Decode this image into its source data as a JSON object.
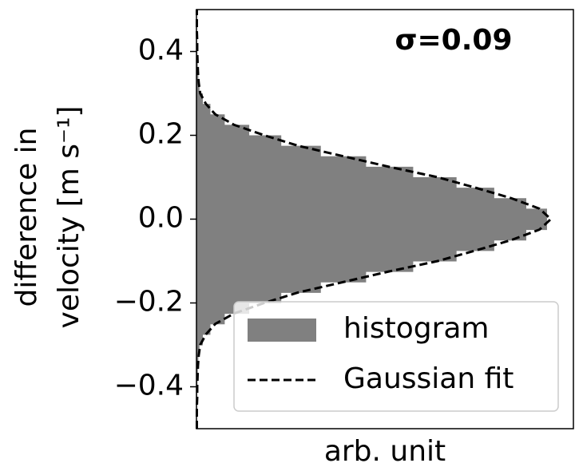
{
  "chart_data": {
    "type": "histogram",
    "orientation": "horizontal",
    "xlabel": "arb. unit",
    "ylabel": [
      "difference in",
      "velocity [m s⁻¹]"
    ],
    "annotation": "σ=0.09",
    "ylim": [
      -0.5,
      0.5
    ],
    "xlim": [
      0,
      1
    ],
    "yticks": [
      {
        "value": -0.4,
        "label": "−0.4"
      },
      {
        "value": -0.2,
        "label": "−0.2"
      },
      {
        "value": 0,
        "label": "0.0"
      },
      0.2,
      0.4
    ],
    "bins": [
      -0.5,
      -0.475,
      -0.45,
      -0.425,
      -0.4,
      -0.375,
      -0.35,
      -0.325,
      -0.3,
      -0.275,
      -0.25,
      -0.225,
      -0.2,
      -0.175,
      -0.15,
      -0.125,
      -0.1,
      -0.075,
      -0.05,
      -0.025,
      0,
      0.025,
      0.05,
      0.075,
      0.1,
      0.125,
      0.15,
      0.175,
      0.2,
      0.225,
      0.25,
      0.275,
      0.3,
      0.325,
      0.35,
      0.375,
      0.4,
      0.425,
      0.45,
      0.475,
      0.5
    ],
    "series": [
      {
        "name": "histogram",
        "color": "#808080",
        "values": [
          0.001,
          0.001,
          0.0015,
          0.002,
          0.0025,
          0.0035,
          0.005,
          0.008,
          0.017,
          0.037,
          0.075,
          0.14,
          0.225,
          0.33,
          0.45,
          0.575,
          0.69,
          0.79,
          0.875,
          0.93,
          0.93,
          0.875,
          0.79,
          0.69,
          0.575,
          0.45,
          0.33,
          0.225,
          0.14,
          0.075,
          0.037,
          0.017,
          0.008,
          0.005,
          0.0035,
          0.0025,
          0.002,
          0.0015,
          0.001,
          0.001
        ]
      },
      {
        "name": "Gaussian fit",
        "color": "#000000",
        "dashed": true,
        "y": [
          -0.5,
          -0.475,
          -0.45,
          -0.425,
          -0.4,
          -0.375,
          -0.35,
          -0.325,
          -0.3,
          -0.275,
          -0.25,
          -0.225,
          -0.2,
          -0.175,
          -0.15,
          -0.125,
          -0.1,
          -0.075,
          -0.05,
          -0.025,
          0,
          0.025,
          0.05,
          0.075,
          0.1,
          0.125,
          0.15,
          0.175,
          0.2,
          0.225,
          0.25,
          0.275,
          0.3,
          0.325,
          0.35,
          0.375,
          0.4,
          0.425,
          0.45,
          0.475,
          0.5
        ],
        "values": [
          0.001,
          0.001,
          0.001,
          0.002,
          0.002,
          0.003,
          0.004,
          0.006,
          0.01,
          0.025,
          0.05,
          0.1,
          0.18,
          0.27,
          0.39,
          0.51,
          0.64,
          0.74,
          0.835,
          0.91,
          0.94,
          0.91,
          0.835,
          0.74,
          0.64,
          0.51,
          0.39,
          0.27,
          0.18,
          0.1,
          0.05,
          0.025,
          0.01,
          0.006,
          0.004,
          0.003,
          0.002,
          0.002,
          0.001,
          0.001,
          0.001
        ]
      }
    ],
    "legend": "lower right"
  }
}
